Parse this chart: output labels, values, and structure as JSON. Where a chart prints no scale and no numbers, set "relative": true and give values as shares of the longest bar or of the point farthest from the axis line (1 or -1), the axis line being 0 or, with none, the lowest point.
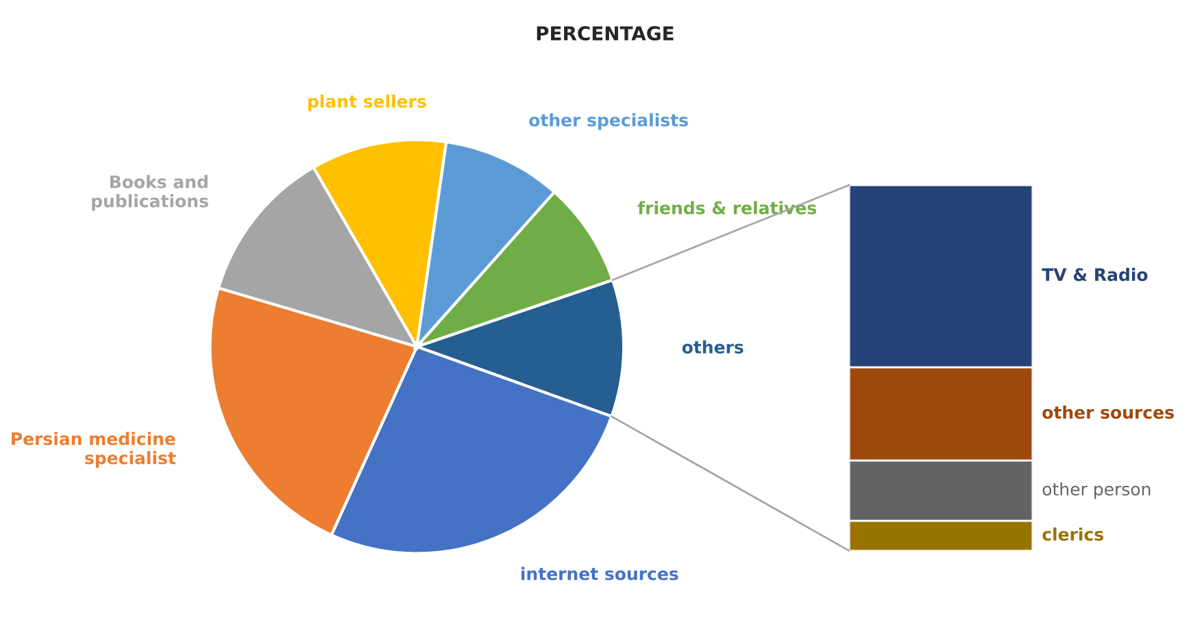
{
  "chart_data": [
    {
      "type": "pie",
      "title": "PERCENTAGE",
      "categories": [
        "others",
        "internet sources",
        "Persian medicine specialist",
        "Books and publications",
        "plant sellers",
        "other specialists",
        "friends & relatives"
      ],
      "values": [
        10.7,
        26.3,
        22.8,
        12.1,
        10.6,
        9.3,
        8.2
      ],
      "colors": [
        "#255e91",
        "#4472c4",
        "#ed7d31",
        "#a5a5a5",
        "#ffc000",
        "#5b9bd5",
        "#70ad47"
      ]
    },
    {
      "type": "bar",
      "stacked": true,
      "relative": true,
      "categories": [
        null
      ],
      "series": [
        {
          "name": "clerics",
          "color": "#997300",
          "values": [
            0.082
          ]
        },
        {
          "name": "other person",
          "color": "#636363",
          "values": [
            0.165
          ]
        },
        {
          "name": "other sources",
          "color": "#9e480e",
          "values": [
            0.255
          ]
        },
        {
          "name": "TV & Radio",
          "color": "#264478",
          "values": [
            0.498
          ]
        }
      ]
    }
  ]
}
